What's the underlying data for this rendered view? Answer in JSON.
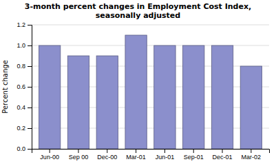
{
  "chart_data": {
    "type": "bar",
    "title": "3-month percent changes in Employment Cost Index,\nseasonally adjusted",
    "y_label": "Percent change",
    "categories": [
      "Jun-00",
      "Sep 00",
      "Dec-00",
      "Mar-01",
      "Jun-01",
      "Sep-01",
      "Dec-01",
      "Mar-02"
    ],
    "values": [
      1.0,
      0.9,
      0.9,
      1.1,
      1.0,
      1.0,
      1.0,
      0.8
    ],
    "color": "#8b8fcc",
    "ylim": [
      0.0,
      1.2
    ],
    "yticks": [
      {
        "value": 0,
        "label": "0.0"
      },
      0.2,
      0.4,
      0.6,
      0.8,
      {
        "value": 1,
        "label": "1.0"
      },
      1.2
    ],
    "grid": true
  }
}
